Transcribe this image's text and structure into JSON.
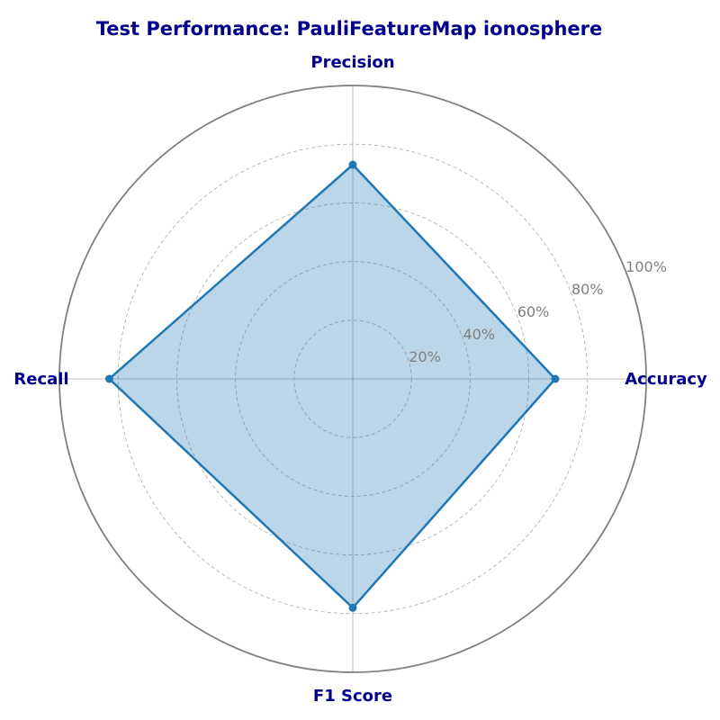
{
  "chart_data": {
    "type": "radar",
    "title": "Test Performance: PauliFeatureMap ionosphere",
    "categories": [
      "Accuracy",
      "Precision",
      "Recall",
      "F1 Score"
    ],
    "series": [
      {
        "values": [
          0.69,
          0.73,
          0.83,
          0.78
        ]
      }
    ],
    "rlim": [
      0,
      1
    ],
    "rticks": [
      0.2,
      0.4,
      0.6,
      0.8,
      1.0
    ],
    "rtick_labels": [
      "20%",
      "40%",
      "60%",
      "80%",
      "100%"
    ],
    "grid": true,
    "colors": {
      "title": "#00008b",
      "axis_labels": "#00008b",
      "tick_labels": "#808080",
      "series_line": "#1f77b4",
      "series_fill": "#1f77b4",
      "outer_ring": "#808080",
      "grid": "#aaaaaa"
    }
  }
}
